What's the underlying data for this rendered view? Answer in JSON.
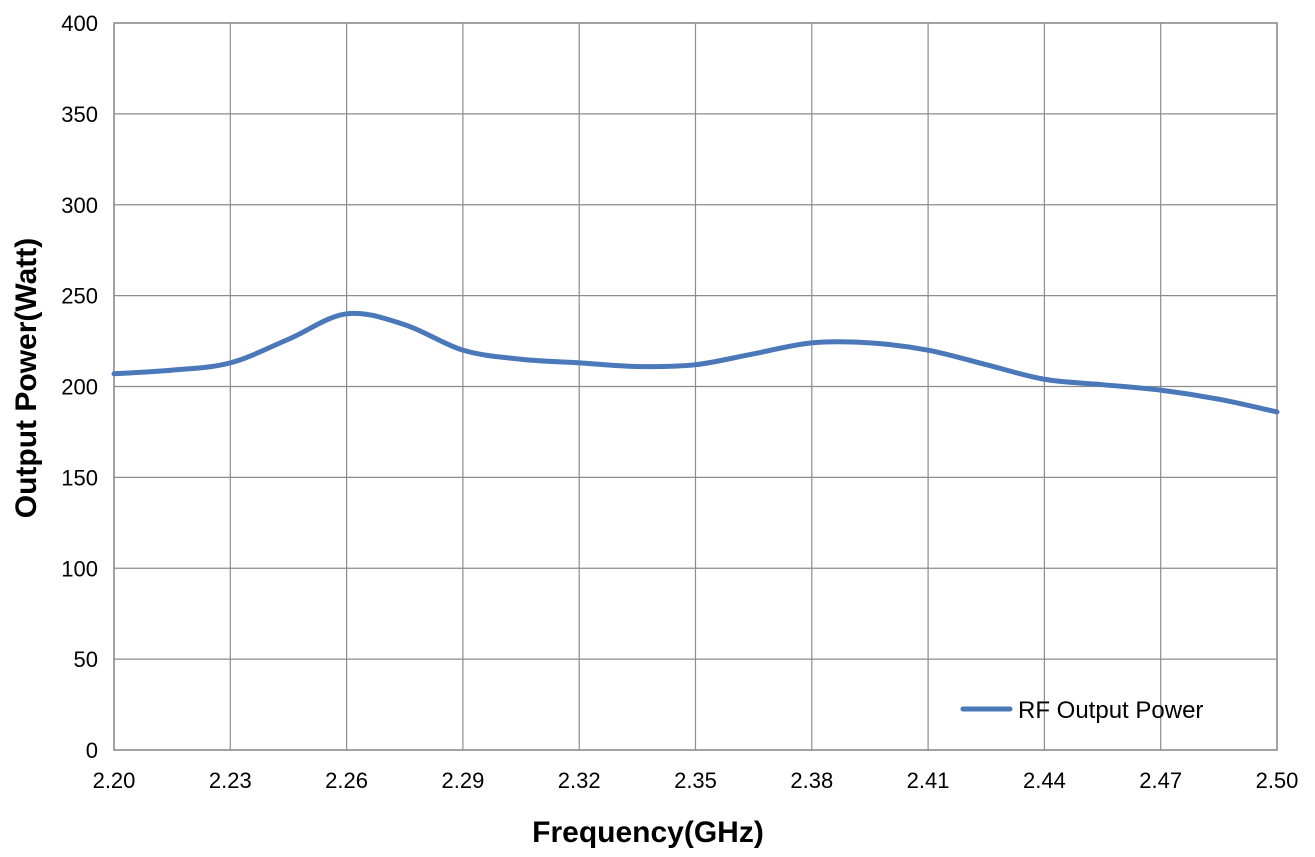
{
  "chart_data": {
    "type": "line",
    "title": "",
    "xlabel": "Frequency(GHz)",
    "ylabel": "Output Power(Watt)",
    "xlim": [
      2.2,
      2.5
    ],
    "ylim": [
      0,
      400
    ],
    "x_ticks": [
      "2.20",
      "2.23",
      "2.26",
      "2.29",
      "2.32",
      "2.35",
      "2.38",
      "2.41",
      "2.44",
      "2.47",
      "2.50"
    ],
    "y_ticks": [
      "0",
      "50",
      "100",
      "150",
      "200",
      "250",
      "300",
      "350",
      "400"
    ],
    "grid": true,
    "legend_position": "bottom-right",
    "series": [
      {
        "name": "RF Output Power",
        "color": "#4a78b9",
        "x": [
          2.2,
          2.215,
          2.23,
          2.245,
          2.26,
          2.275,
          2.29,
          2.305,
          2.32,
          2.335,
          2.35,
          2.365,
          2.38,
          2.395,
          2.41,
          2.425,
          2.44,
          2.455,
          2.47,
          2.485,
          2.5
        ],
        "y": [
          207,
          209,
          213,
          226,
          240,
          234,
          220,
          215,
          213,
          211,
          212,
          218,
          224,
          224,
          220,
          212,
          204,
          201,
          198,
          193,
          186
        ]
      }
    ]
  }
}
